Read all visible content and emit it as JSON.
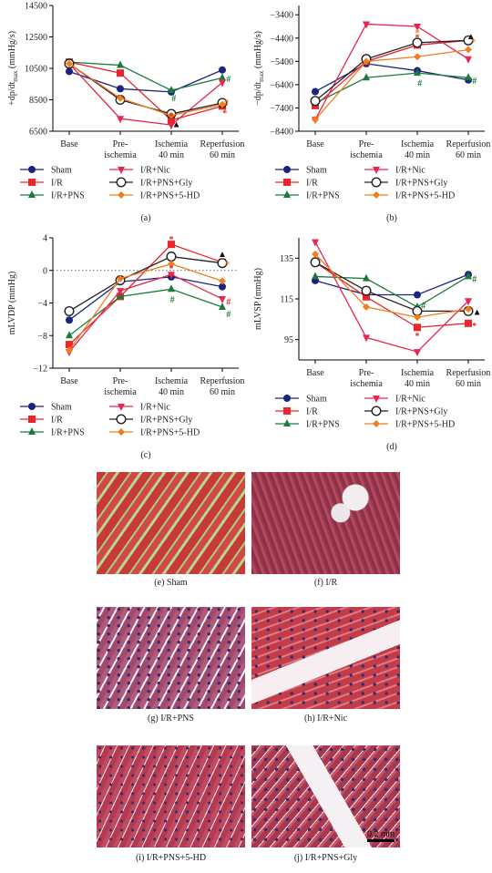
{
  "chart_data": [
    {
      "id": "a",
      "type": "line",
      "panel_label": "(a)",
      "ylabel": "+dp/dt",
      "ylabel_sub": "max",
      "ylabel_unit": "(mmHg/s)",
      "ylim": [
        6500,
        14500
      ],
      "yticks": [
        6500,
        8500,
        10500,
        12500,
        14500
      ],
      "categories": [
        [
          "Base"
        ],
        [
          "Pre-",
          "ischemia"
        ],
        [
          "Ischemia",
          "40 min"
        ],
        [
          "Reperfusion",
          "60 min"
        ]
      ],
      "series": [
        {
          "name": "Sham",
          "values": [
            10300,
            9200,
            9000,
            10400
          ]
        },
        {
          "name": "I/R",
          "values": [
            10900,
            10200,
            7200,
            8100
          ]
        },
        {
          "name": "I/R+PNS",
          "values": [
            10900,
            10700,
            9100,
            9900
          ]
        },
        {
          "name": "I/R+Nic",
          "values": [
            10800,
            7300,
            6900,
            9600
          ]
        },
        {
          "name": "I/R+PNS+Gly",
          "values": [
            10800,
            8500,
            7600,
            8300
          ]
        },
        {
          "name": "I/R+PNS+5-HD",
          "values": [
            10800,
            8600,
            7500,
            8200
          ]
        }
      ],
      "annotations": [
        {
          "text": "*",
          "x": 2,
          "y": 7500,
          "color": "#e8262b"
        },
        {
          "text": "*",
          "x": 2,
          "y": 7200,
          "color": "#e8262b"
        },
        {
          "text": "▲",
          "x": 2.1,
          "y": 7000,
          "color": "#111111"
        },
        {
          "text": "#",
          "x": 2.05,
          "y": 8650,
          "color": "#1e7a3a"
        },
        {
          "text": "#",
          "x": 3.12,
          "y": 9850,
          "color": "#1e7a3a"
        },
        {
          "text": "#",
          "x": 3.08,
          "y": 8350,
          "color": "#f07d1e"
        },
        {
          "text": "*",
          "x": 3.05,
          "y": 7700,
          "color": "#e8262b"
        }
      ]
    },
    {
      "id": "b",
      "type": "line",
      "panel_label": "(b)",
      "ylabel": "−dp/dt",
      "ylabel_sub": "max",
      "ylabel_unit": "(mmHg/s)",
      "ylim": [
        -8400,
        -3000
      ],
      "yticks": [
        -3400,
        -4400,
        -5400,
        -6400,
        -7400,
        -8400
      ],
      "categories": [
        [
          "Base"
        ],
        [
          "Pre-",
          "ischemia"
        ],
        [
          "Ischemia",
          "40 min"
        ],
        [
          "Reperfusion",
          "60 min"
        ]
      ],
      "series": [
        {
          "name": "Sham",
          "values": [
            -6700,
            -5500,
            -5800,
            -6200
          ]
        },
        {
          "name": "I/R",
          "values": [
            -7300,
            -5400,
            -4700,
            -4500
          ]
        },
        {
          "name": "I/R+PNS",
          "values": [
            -7200,
            -6100,
            -5900,
            -6100
          ]
        },
        {
          "name": "I/R+Nic",
          "values": [
            -7900,
            -3800,
            -3900,
            -5300
          ]
        },
        {
          "name": "I/R+PNS+Gly",
          "values": [
            -7100,
            -5300,
            -4600,
            -4500
          ]
        },
        {
          "name": "I/R+PNS+5-HD",
          "values": [
            -7900,
            -5400,
            -5200,
            -4900
          ]
        }
      ],
      "annotations": [
        {
          "text": "*",
          "x": 2,
          "y": -4350,
          "color": "#e8262b"
        },
        {
          "text": "*",
          "x": 2,
          "y": -4150,
          "color": "#f07d1e"
        },
        {
          "text": "#",
          "x": 2.05,
          "y": -6300,
          "color": "#1e7a3a"
        },
        {
          "text": "▲",
          "x": 3.05,
          "y": -4300,
          "color": "#111111"
        },
        {
          "text": "*",
          "x": 3.1,
          "y": -4550,
          "color": "#f07d1e"
        },
        {
          "text": "#",
          "x": 3.12,
          "y": -6200,
          "color": "#1e7a3a"
        }
      ]
    },
    {
      "id": "c",
      "type": "line",
      "panel_label": "(c)",
      "ylabel": "mLVDP (mmHg)",
      "ylim": [
        -12,
        4
      ],
      "yticks": [
        4,
        0,
        -4,
        -8,
        -12
      ],
      "zero_line": true,
      "categories": [
        [
          "Base"
        ],
        [
          "Pre-",
          "ischemia"
        ],
        [
          "Ischemia",
          "40 min"
        ],
        [
          "Reperfusion",
          "60 min"
        ]
      ],
      "series": [
        {
          "name": "Sham",
          "values": [
            -6.1,
            -1.4,
            -0.8,
            -2.0
          ]
        },
        {
          "name": "I/R",
          "values": [
            -9.1,
            -3.2,
            3.2,
            1.0
          ]
        },
        {
          "name": "I/R+PNS",
          "values": [
            -8.0,
            -3.2,
            -2.3,
            -4.5
          ]
        },
        {
          "name": "I/R+Nic",
          "values": [
            -10.0,
            -2.5,
            -0.5,
            -3.5
          ]
        },
        {
          "name": "I/R+PNS+Gly",
          "values": [
            -5.0,
            -1.2,
            1.7,
            0.9
          ]
        },
        {
          "name": "I/R+PNS+5-HD",
          "values": [
            -9.8,
            -1.0,
            0.8,
            -1.3
          ]
        }
      ],
      "annotations": [
        {
          "text": "*",
          "x": 2,
          "y": 3.9,
          "color": "#e8262b"
        },
        {
          "text": "*",
          "x": 2,
          "y": 0.3,
          "color": "#e8262b"
        },
        {
          "text": "#",
          "x": 2.02,
          "y": -3.5,
          "color": "#1e7a3a"
        },
        {
          "text": "▲",
          "x": 3.0,
          "y": 2.1,
          "color": "#111111"
        },
        {
          "text": "*",
          "x": 3.1,
          "y": 0.8,
          "color": "#f07d1e"
        },
        {
          "text": "#",
          "x": 3.12,
          "y": -3.8,
          "color": "#e8262b"
        },
        {
          "text": "#",
          "x": 3.12,
          "y": -5.3,
          "color": "#1e7a3a"
        }
      ]
    },
    {
      "id": "d",
      "type": "line",
      "panel_label": "(d)",
      "ylabel": "mLVSP (mmHg)",
      "ylim": [
        85,
        145
      ],
      "yticks": [
        95,
        115,
        135
      ],
      "categories": [
        [
          "Base"
        ],
        [
          "Pre-",
          "ischemia"
        ],
        [
          "Ischemia",
          "40 min"
        ],
        [
          "Reperfusion",
          "60 min"
        ]
      ],
      "series": [
        {
          "name": "Sham",
          "values": [
            124,
            117,
            117,
            127
          ]
        },
        {
          "name": "I/R",
          "values": [
            133,
            116,
            101,
            103
          ]
        },
        {
          "name": "I/R+PNS",
          "values": [
            126,
            125,
            111,
            126
          ]
        },
        {
          "name": "I/R+Nic",
          "values": [
            143,
            96,
            89,
            114
          ]
        },
        {
          "name": "I/R+PNS+Gly",
          "values": [
            133,
            119,
            109,
            109
          ]
        },
        {
          "name": "I/R+PNS+5-HD",
          "values": [
            137,
            111,
            106,
            110
          ]
        }
      ],
      "annotations": [
        {
          "text": "*",
          "x": 2,
          "y": 97,
          "color": "#e8262b"
        },
        {
          "text": "#",
          "x": 2.12,
          "y": 112,
          "color": "#1e7a3a"
        },
        {
          "text": "▲",
          "x": 3.17,
          "y": 109,
          "color": "#111111"
        },
        {
          "text": "*",
          "x": 3.12,
          "y": 102,
          "color": "#e8262b"
        },
        {
          "text": "#",
          "x": 3.12,
          "y": 125,
          "color": "#1e7a3a"
        }
      ]
    }
  ],
  "series_styles": {
    "Sham": {
      "color": "#1a237e",
      "marker": "circle"
    },
    "I/R": {
      "color": "#e8262b",
      "marker": "square"
    },
    "I/R+PNS": {
      "color": "#1e7a3a",
      "marker": "triangle-up"
    },
    "I/R+Nic": {
      "color": "#e8264f",
      "marker": "triangle-down"
    },
    "I/R+PNS+Gly": {
      "color": "#222222",
      "marker": "open-circle"
    },
    "I/R+PNS+5-HD": {
      "color": "#f07d1e",
      "marker": "diamond"
    }
  },
  "histology": {
    "scale_label": "0.2 mm",
    "images": [
      {
        "caption": "(e)  Sham"
      },
      {
        "caption": "(f)  I/R"
      },
      {
        "caption": "(g)  I/R+PNS"
      },
      {
        "caption": "(h)  I/R+Nic"
      },
      {
        "caption": "(i)  I/R+PNS+5-HD"
      },
      {
        "caption": "(j)  I/R+PNS+Gly"
      }
    ]
  }
}
